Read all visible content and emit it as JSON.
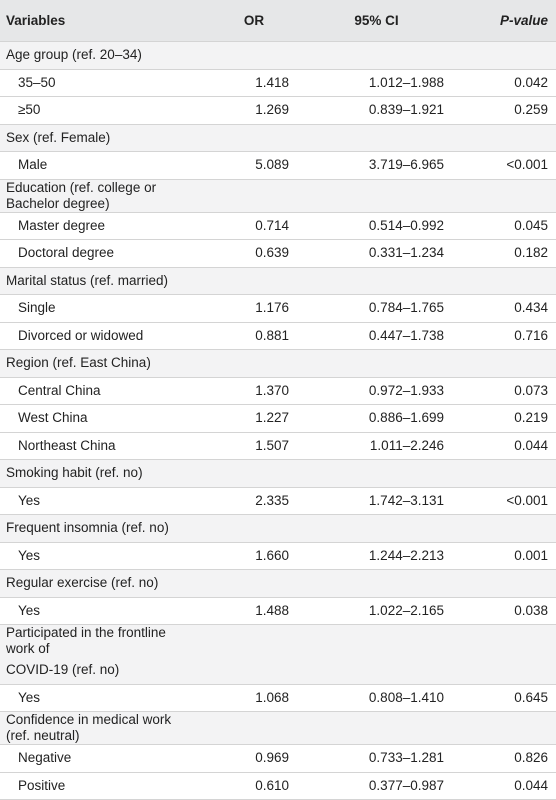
{
  "header": {
    "variables": "Variables",
    "or": "OR",
    "ci": "95% CI",
    "p": "P-value"
  },
  "rows": [
    {
      "type": "group",
      "label": "Age group (ref. 20–34)",
      "or": "",
      "ci": "",
      "p": ""
    },
    {
      "type": "sub",
      "label": "35–50",
      "or": "1.418",
      "ci": "1.012–1.988",
      "p": "0.042"
    },
    {
      "type": "sub",
      "label": "≥50",
      "or": "1.269",
      "ci": "0.839–1.921",
      "p": "0.259"
    },
    {
      "type": "group",
      "label": "Sex (ref. Female)",
      "or": "",
      "ci": "",
      "p": ""
    },
    {
      "type": "sub",
      "label": "Male",
      "or": "5.089",
      "ci": "3.719–6.965",
      "p": "<0.001"
    },
    {
      "type": "group",
      "label": "Education (ref. college or Bachelor degree)",
      "or": "",
      "ci": "",
      "p": ""
    },
    {
      "type": "sub",
      "label": "Master degree",
      "or": "0.714",
      "ci": "0.514–0.992",
      "p": "0.045"
    },
    {
      "type": "sub",
      "label": "Doctoral degree",
      "or": "0.639",
      "ci": "0.331–1.234",
      "p": "0.182"
    },
    {
      "type": "group",
      "label": "Marital status (ref. married)",
      "or": "",
      "ci": "",
      "p": ""
    },
    {
      "type": "sub",
      "label": "Single",
      "or": "1.176",
      "ci": "0.784–1.765",
      "p": "0.434"
    },
    {
      "type": "sub",
      "label": "Divorced or widowed",
      "or": "0.881",
      "ci": "0.447–1.738",
      "p": "0.716"
    },
    {
      "type": "group",
      "label": "Region (ref. East China)",
      "or": "",
      "ci": "",
      "p": ""
    },
    {
      "type": "sub",
      "label": "Central China",
      "or": "1.370",
      "ci": "0.972–1.933",
      "p": "0.073"
    },
    {
      "type": "sub",
      "label": "West China",
      "or": "1.227",
      "ci": "0.886–1.699",
      "p": "0.219"
    },
    {
      "type": "sub",
      "label": "Northeast China",
      "or": "1.507",
      "ci": "1.011–2.246",
      "p": "0.044"
    },
    {
      "type": "group",
      "label": "Smoking habit (ref. no)",
      "or": "",
      "ci": "",
      "p": ""
    },
    {
      "type": "sub",
      "label": "Yes",
      "or": "2.335",
      "ci": "1.742–3.131",
      "p": "<0.001"
    },
    {
      "type": "group",
      "label": "Frequent insomnia (ref. no)",
      "or": "",
      "ci": "",
      "p": ""
    },
    {
      "type": "sub",
      "label": "Yes",
      "or": "1.660",
      "ci": "1.244–2.213",
      "p": "0.001"
    },
    {
      "type": "group",
      "label": "Regular exercise (ref. no)",
      "or": "",
      "ci": "",
      "p": ""
    },
    {
      "type": "sub",
      "label": "Yes",
      "or": "1.488",
      "ci": "1.022–2.165",
      "p": "0.038"
    },
    {
      "type": "group",
      "label": "Participated in the frontline work of",
      "or": "",
      "ci": "",
      "p": "",
      "noBorder": true
    },
    {
      "type": "group",
      "label": "COVID-19 (ref. no)",
      "or": "",
      "ci": "",
      "p": ""
    },
    {
      "type": "sub",
      "label": "Yes",
      "or": "1.068",
      "ci": "0.808–1.410",
      "p": "0.645"
    },
    {
      "type": "group",
      "label": "Confidence in medical work (ref. neutral)",
      "or": "",
      "ci": "",
      "p": ""
    },
    {
      "type": "sub",
      "label": "Negative",
      "or": "0.969",
      "ci": "0.733–1.281",
      "p": "0.826"
    },
    {
      "type": "sub",
      "label": "Positive",
      "or": "0.610",
      "ci": "0.377–0.987",
      "p": "0.044"
    }
  ]
}
